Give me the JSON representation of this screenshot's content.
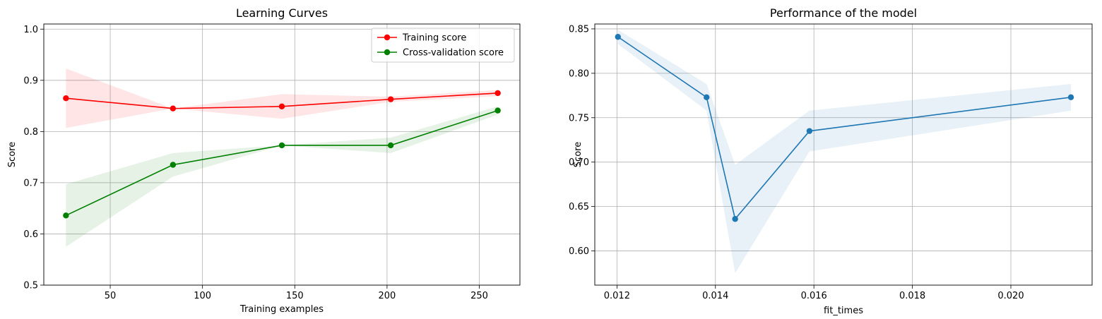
{
  "chart_data": [
    {
      "type": "line",
      "title": "Learning Curves",
      "xlabel": "Training examples",
      "ylabel": "Score",
      "xlim": [
        14,
        272
      ],
      "ylim": [
        0.5,
        1.01
      ],
      "xticks": [
        50,
        100,
        150,
        200,
        250
      ],
      "yticks": [
        0.5,
        0.6,
        0.7,
        0.8,
        0.9,
        1.0
      ],
      "xtick_labels": [
        "50",
        "100",
        "150",
        "200",
        "250"
      ],
      "ytick_labels": [
        "0.5",
        "0.6",
        "0.7",
        "0.8",
        "0.9",
        "1.0"
      ],
      "grid": true,
      "legend_position": "top-right",
      "x": [
        26,
        84,
        143,
        202,
        260
      ],
      "series": [
        {
          "name": "Training score",
          "color": "#ff0000",
          "values": [
            0.865,
            0.845,
            0.849,
            0.863,
            0.875
          ],
          "lower": [
            0.807,
            0.845,
            0.825,
            0.858,
            0.869
          ],
          "upper": [
            0.923,
            0.845,
            0.873,
            0.868,
            0.881
          ]
        },
        {
          "name": "Cross-validation score",
          "color": "#008000",
          "values": [
            0.636,
            0.735,
            0.773,
            0.773,
            0.841
          ],
          "lower": [
            0.575,
            0.712,
            0.773,
            0.758,
            0.833
          ],
          "upper": [
            0.697,
            0.758,
            0.773,
            0.788,
            0.849
          ]
        }
      ]
    },
    {
      "type": "line",
      "title": "Performance of the model",
      "xlabel": "fit_times",
      "ylabel": "Score",
      "xlim": [
        0.01155,
        0.02165
      ],
      "ylim": [
        0.5615,
        0.8555
      ],
      "xticks": [
        0.012,
        0.014,
        0.016,
        0.018,
        0.02
      ],
      "yticks": [
        0.6,
        0.65,
        0.7,
        0.75,
        0.8,
        0.85
      ],
      "xtick_labels": [
        "0.012",
        "0.014",
        "0.016",
        "0.018",
        "0.020"
      ],
      "ytick_labels": [
        "0.60",
        "0.65",
        "0.70",
        "0.75",
        "0.80",
        "0.85"
      ],
      "grid": true,
      "x": [
        0.01202,
        0.01382,
        0.0144,
        0.01591,
        0.02122
      ],
      "series": [
        {
          "color": "#1f77b4",
          "values": [
            0.841,
            0.773,
            0.636,
            0.735,
            0.773
          ],
          "lower": [
            0.833,
            0.758,
            0.575,
            0.712,
            0.758
          ],
          "upper": [
            0.849,
            0.788,
            0.697,
            0.758,
            0.788
          ]
        }
      ]
    }
  ]
}
